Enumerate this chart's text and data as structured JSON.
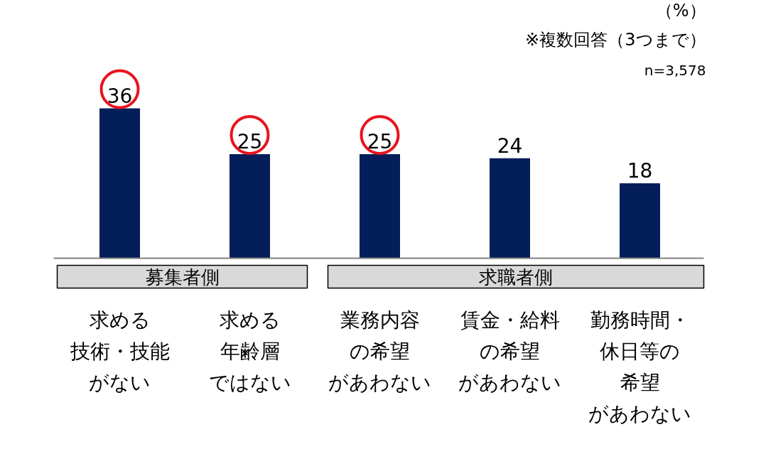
{
  "chart_data": {
    "type": "bar",
    "categories": [
      "求める技術・技能がない",
      "求める年齢層ではない",
      "業務内容の希望があわない",
      "賃金・給料の希望があわない",
      "勤務時間・休日等の希望があわない"
    ],
    "values": [
      36,
      25,
      25,
      24,
      18
    ],
    "color": "#041e5a",
    "data_labels": true,
    "annotations": [
      "（%）",
      "※複数回答（3つまで）",
      "n=3,578",
      "募集者側",
      "求職者側"
    ],
    "grid": false
  }
}
